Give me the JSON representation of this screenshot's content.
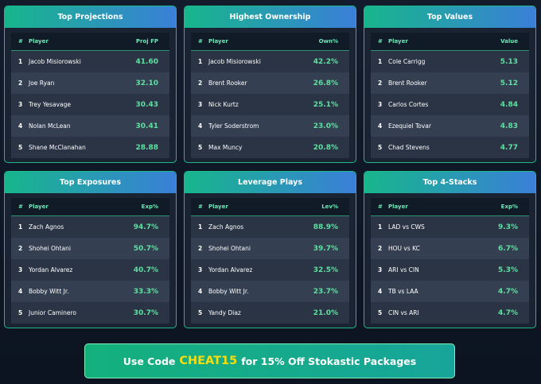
{
  "cards": [
    {
      "title": "Top Projections",
      "headers": [
        "#",
        "Player",
        "Proj FP"
      ],
      "rows": [
        [
          "1",
          "Jacob Misiorowski",
          "41.60"
        ],
        [
          "2",
          "Joe Ryan",
          "32.10"
        ],
        [
          "3",
          "Trey Yesavage",
          "30.43"
        ],
        [
          "4",
          "Nolan McLean",
          "30.41"
        ],
        [
          "5",
          "Shane McClanahan",
          "28.88"
        ]
      ]
    },
    {
      "title": "Highest Ownership",
      "headers": [
        "#",
        "Player",
        "Own%"
      ],
      "rows": [
        [
          "1",
          "Jacob Misiorowski",
          "42.2%"
        ],
        [
          "2",
          "Brent Rooker",
          "26.8%"
        ],
        [
          "3",
          "Nick Kurtz",
          "25.1%"
        ],
        [
          "4",
          "Tyler Soderstrom",
          "23.0%"
        ],
        [
          "5",
          "Max Muncy",
          "20.8%"
        ]
      ]
    },
    {
      "title": "Top Values",
      "headers": [
        "#",
        "Player",
        "Value"
      ],
      "rows": [
        [
          "1",
          "Cole Carrigg",
          "5.13"
        ],
        [
          "2",
          "Brent Rooker",
          "5.12"
        ],
        [
          "3",
          "Carlos Cortes",
          "4.84"
        ],
        [
          "4",
          "Ezequiel Tovar",
          "4.83"
        ],
        [
          "5",
          "Chad Stevens",
          "4.77"
        ]
      ]
    },
    {
      "title": "Top Exposures",
      "headers": [
        "#",
        "Player",
        "Exp%"
      ],
      "rows": [
        [
          "1",
          "Zach Agnos",
          "94.7%"
        ],
        [
          "2",
          "Shohei Ohtani",
          "50.7%"
        ],
        [
          "3",
          "Yordan Alvarez",
          "40.7%"
        ],
        [
          "4",
          "Bobby Witt Jr.",
          "33.3%"
        ],
        [
          "5",
          "Junior Caminero",
          "30.7%"
        ]
      ]
    },
    {
      "title": "Leverage Plays",
      "headers": [
        "#",
        "Player",
        "Lev%"
      ],
      "rows": [
        [
          "1",
          "Zach Agnos",
          "88.9%"
        ],
        [
          "2",
          "Shohei Ohtani",
          "39.7%"
        ],
        [
          "3",
          "Yordan Alvarez",
          "32.5%"
        ],
        [
          "4",
          "Bobby Witt Jr.",
          "23.7%"
        ],
        [
          "5",
          "Yandy Diaz",
          "21.0%"
        ]
      ]
    },
    {
      "title": "Top 4-Stacks",
      "headers": [
        "#",
        "Player",
        "Exp%"
      ],
      "rows": [
        [
          "1",
          "LAD vs CWS",
          "9.3%"
        ],
        [
          "2",
          "HOU vs KC",
          "6.7%"
        ],
        [
          "3",
          "ARI vs CIN",
          "5.3%"
        ],
        [
          "4",
          "TB vs LAA",
          "4.7%"
        ],
        [
          "5",
          "CIN vs ARI",
          "4.7%"
        ]
      ]
    }
  ],
  "banner": {
    "before": "Use Code",
    "code": "CHEAT15",
    "after": "for 15% Off Stokastic Packages"
  }
}
